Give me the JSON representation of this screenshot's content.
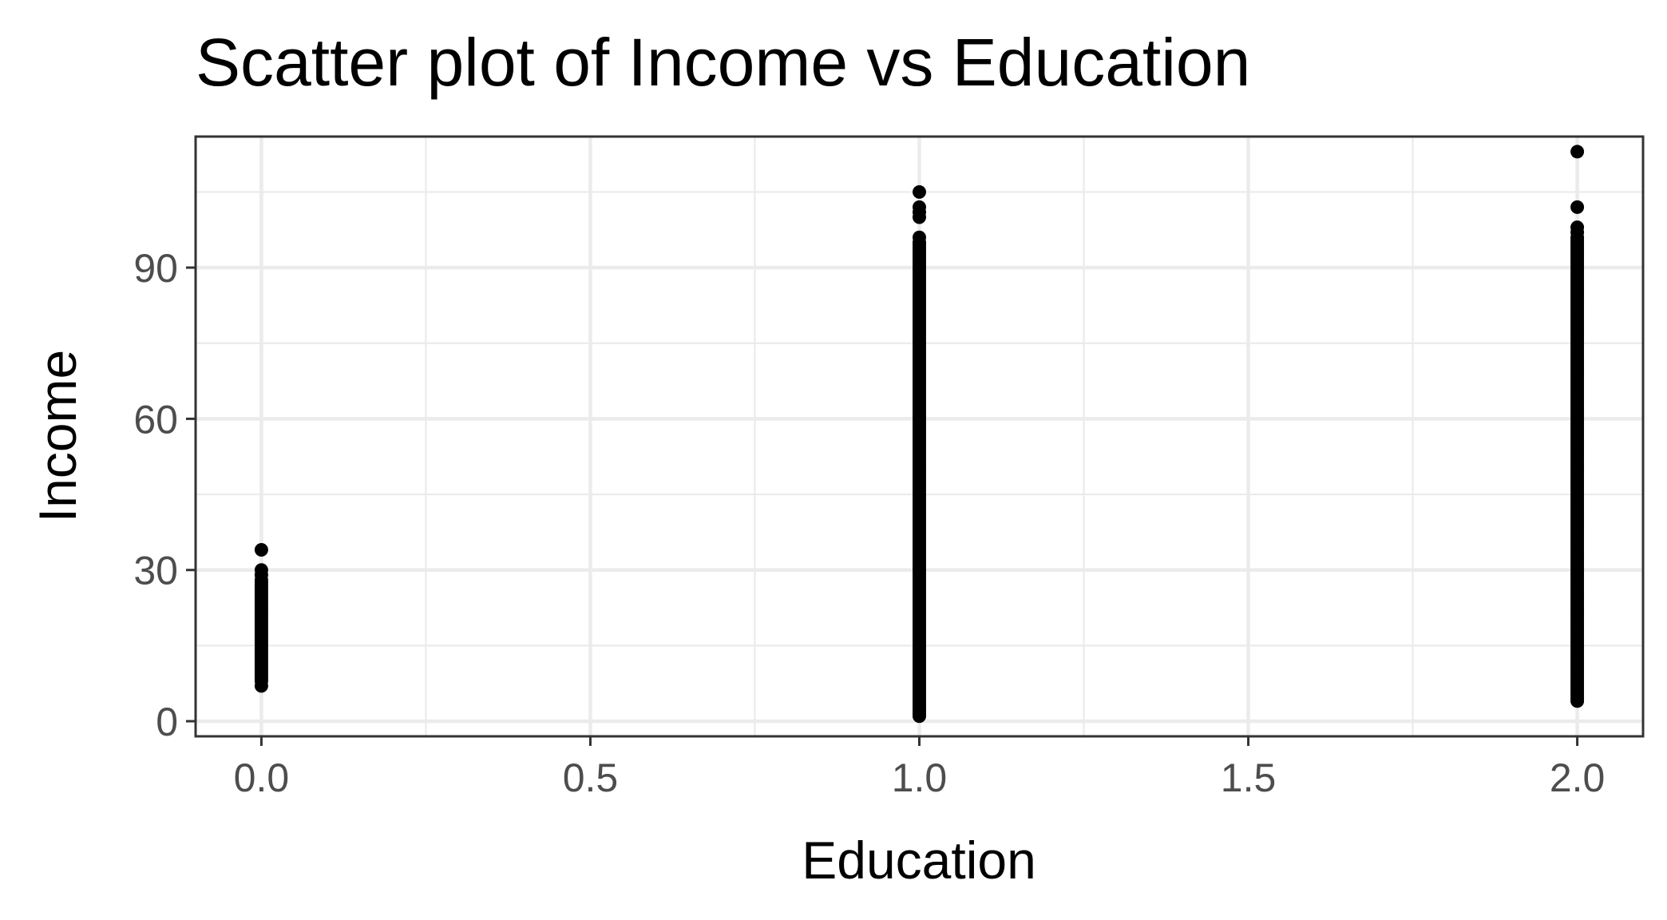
{
  "chart_data": {
    "type": "scatter",
    "title": "Scatter plot of Income vs Education",
    "xlabel": "Education",
    "ylabel": "Income",
    "xlim": [
      -0.1,
      2.1
    ],
    "ylim": [
      -3,
      116
    ],
    "x_ticks": [
      {
        "value": 0.0,
        "label": "0.0"
      },
      {
        "value": 0.5,
        "label": "0.5"
      },
      {
        "value": 1.0,
        "label": "1.0"
      },
      {
        "value": 1.5,
        "label": "1.5"
      },
      {
        "value": 2.0,
        "label": "2.0"
      }
    ],
    "y_ticks": [
      {
        "value": 0,
        "label": "0"
      },
      {
        "value": 30,
        "label": "30"
      },
      {
        "value": 60,
        "label": "60"
      },
      {
        "value": 90,
        "label": "90"
      }
    ],
    "grid": true,
    "legend": "none",
    "point_color": "#000000",
    "groups": [
      {
        "x": 0,
        "y_range": [
          8,
          28
        ],
        "outliers": [
          7,
          29,
          30,
          34
        ]
      },
      {
        "x": 1,
        "y_range": [
          1,
          95
        ],
        "outliers": [
          96,
          100,
          101,
          102,
          105
        ]
      },
      {
        "x": 2,
        "y_range": [
          4,
          96
        ],
        "outliers": [
          97,
          98,
          102,
          113
        ]
      }
    ]
  }
}
